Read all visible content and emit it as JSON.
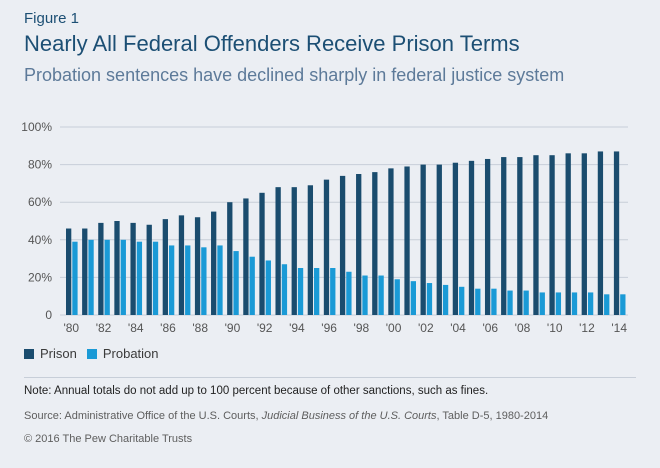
{
  "figure_label": "Figure 1",
  "title": "Nearly All Federal Offenders Receive Prison Terms",
  "subtitle": "Probation sentences have declined sharply in federal justice system",
  "legend": {
    "prison": "Prison",
    "probation": "Probation"
  },
  "colors": {
    "prison": "#1a4c6e",
    "probation": "#1a9ad6",
    "grid": "#c7ced8",
    "axis_text": "#555555"
  },
  "note": "Note: Annual totals do not add up to 100 percent because of other sanctions, such as fines.",
  "source": {
    "prefix": "Source: Administrative Office of the U.S. Courts, ",
    "italic": "Judicial Business of the U.S. Courts",
    "suffix": ", Table D-5, 1980-2014"
  },
  "copyright": "© 2016 The Pew Charitable Trusts",
  "chart_data": {
    "type": "bar",
    "ylim": [
      0,
      100
    ],
    "yticks": [
      0,
      20,
      40,
      60,
      80,
      100
    ],
    "ytick_labels": [
      "0",
      "20%",
      "40%",
      "60%",
      "80%",
      "100%"
    ],
    "grid": true,
    "legend_position": "bottom-left",
    "categories": [
      "1980",
      "1981",
      "1982",
      "1983",
      "1984",
      "1985",
      "1986",
      "1987",
      "1988",
      "1989",
      "1990",
      "1991",
      "1992",
      "1993",
      "1994",
      "1995",
      "1996",
      "1997",
      "1998",
      "1999",
      "2000",
      "2001",
      "2002",
      "2003",
      "2004",
      "2005",
      "2006",
      "2007",
      "2008",
      "2009",
      "2010",
      "2011",
      "2012",
      "2013",
      "2014"
    ],
    "xtick_labels": [
      "'80",
      "",
      "'82",
      "",
      "'84",
      "",
      "'86",
      "",
      "'88",
      "",
      "'90",
      "",
      "'92",
      "",
      "'94",
      "",
      "'96",
      "",
      "'98",
      "",
      "'00",
      "",
      "'02",
      "",
      "'04",
      "",
      "'06",
      "",
      "'08",
      "",
      "'10",
      "",
      "'12",
      "",
      "'14"
    ],
    "series": [
      {
        "name": "Prison",
        "values": [
          46,
          46,
          49,
          50,
          49,
          48,
          51,
          53,
          52,
          55,
          60,
          62,
          65,
          68,
          68,
          69,
          72,
          74,
          75,
          76,
          78,
          79,
          80,
          80,
          81,
          82,
          83,
          84,
          84,
          85,
          85,
          86,
          86,
          87,
          87
        ]
      },
      {
        "name": "Probation",
        "values": [
          39,
          40,
          40,
          40,
          39,
          39,
          37,
          37,
          36,
          37,
          34,
          31,
          29,
          27,
          25,
          25,
          25,
          23,
          21,
          21,
          19,
          18,
          17,
          16,
          15,
          14,
          14,
          13,
          13,
          12,
          12,
          12,
          12,
          11,
          11
        ]
      }
    ]
  }
}
